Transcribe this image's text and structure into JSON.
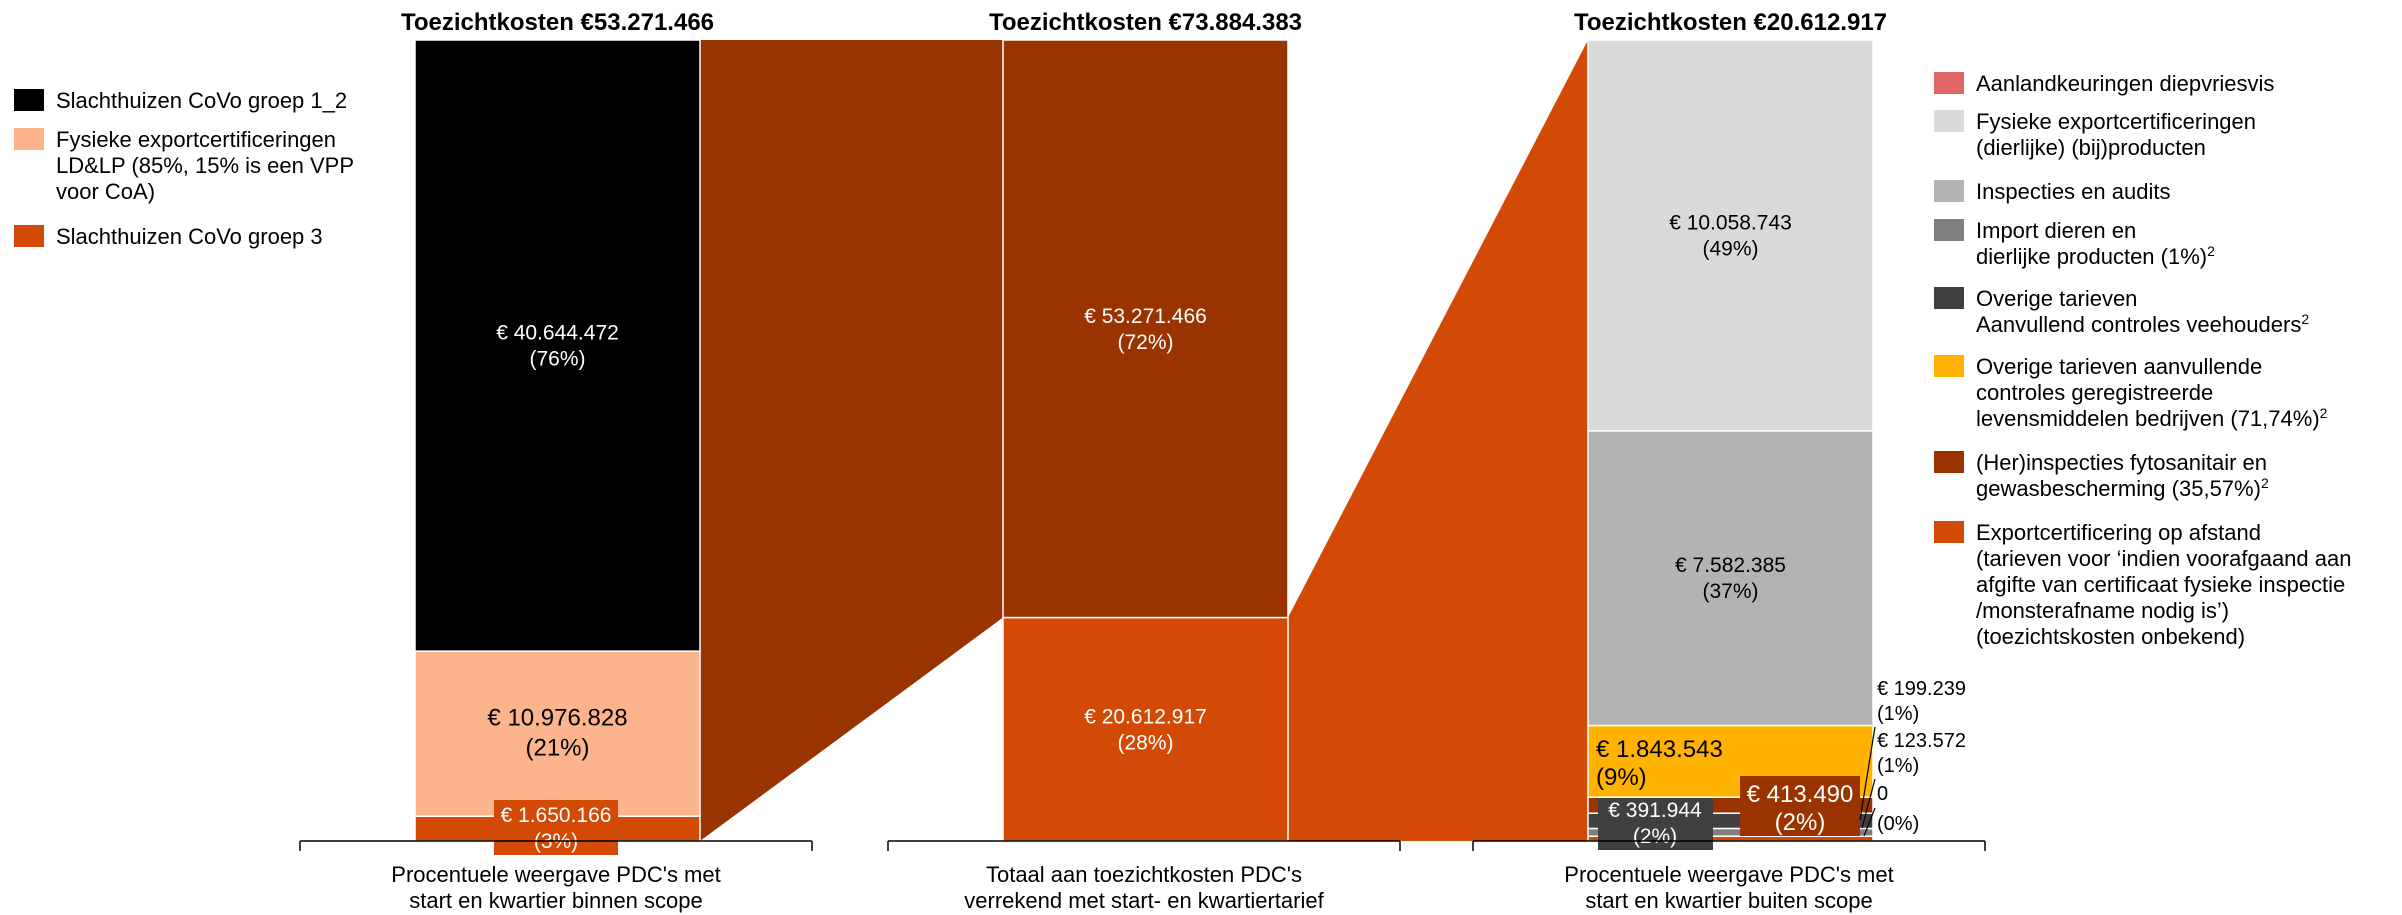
{
  "chart_data": {
    "type": "bar",
    "stacked": true,
    "bars": [
      {
        "id": "binnen",
        "title": "Toezichtkosten €53.271.466",
        "total": 53271466,
        "axis_label": [
          "Procentuele weergave PDC's met",
          "start en kwartier binnen scope"
        ],
        "segments": [
          {
            "name": "Slachthuizen CoVo groep 3",
            "value": 1650166,
            "pct": 3,
            "label": "€ 1.650.166",
            "pct_label": "(3%)",
            "color": "#d24a05"
          },
          {
            "name": "Fysieke exportcertificeringen LD&LP (85%, 15% is een VPP voor CoA)",
            "value": 10976828,
            "pct": 21,
            "label": "€ 10.976.828",
            "pct_label": "(21%)",
            "color": "#fcb48c"
          },
          {
            "name": "Slachthuizen CoVo groep 1_2",
            "value": 40644472,
            "pct": 76,
            "label": "€ 40.644.472",
            "pct_label": "(76%)",
            "color": "#000000"
          }
        ]
      },
      {
        "id": "totaal",
        "title": "Toezichtkosten €73.884.383",
        "total": 73884383,
        "axis_label": [
          "Totaal aan toezichtkosten PDC's",
          "verrekend met start- en kwartiertarief"
        ],
        "segments": [
          {
            "name": "Buiten scope",
            "value": 20612917,
            "pct": 28,
            "label": "€ 20.612.917",
            "pct_label": "(28%)",
            "color": "#d24a05"
          },
          {
            "name": "Binnen scope",
            "value": 53271466,
            "pct": 72,
            "label": "€ 53.271.466",
            "pct_label": "(72%)",
            "color": "#993300"
          }
        ]
      },
      {
        "id": "buiten",
        "title": "Toezichtkosten €20.612.917",
        "total": 20612917,
        "axis_label": [
          "Procentuele weergave PDC's met",
          "start en kwartier buiten scope"
        ],
        "segments": [
          {
            "name": "Aanlandkeuringen diepvriesvis",
            "value": 0,
            "pct": 0,
            "label": "0",
            "pct_label": "(0%)",
            "color": "#e06666"
          },
          {
            "name": "Exportcertificering op afstand",
            "value": 123572,
            "pct": 1,
            "label": "€ 123.572",
            "pct_label": "(1%)",
            "color": "#d24a05"
          },
          {
            "name": "Import dieren en dierlijke producten (1%)",
            "value": 199239,
            "pct": 1,
            "label": "€ 199.239",
            "pct_label": "(1%)",
            "color": "#7f7f7f"
          },
          {
            "name": "Overige tarieven Aanvullend controles veehouders",
            "value": 391944,
            "pct": 2,
            "label": "€ 391.944",
            "pct_label": "(2%)",
            "color": "#404040"
          },
          {
            "name": "(Her)inspecties fytosanitair en gewasbescherming (35,57%)",
            "value": 413490,
            "pct": 2,
            "label": "€ 413.490",
            "pct_label": "(2%)",
            "color": "#993300"
          },
          {
            "name": "Overige tarieven aanvullende controles geregistreerde levensmiddelen bedrijven (71,74%)",
            "value": 1843543,
            "pct": 9,
            "label": "€ 1.843.543",
            "pct_label": "(9%)",
            "color": "#ffb300"
          },
          {
            "name": "Inspecties en audits",
            "value": 7582385,
            "pct": 37,
            "label": "€ 7.582.385",
            "pct_label": "(37%)",
            "color": "#b3b3b3"
          },
          {
            "name": "Fysieke exportcertificeringen (dierlijke) (bij)producten",
            "value": 10058743,
            "pct": 49,
            "label": "€ 10.058.743",
            "pct_label": "(49%)",
            "color": "#dadada"
          }
        ],
        "callouts": [
          {
            "label": "€ 199.239",
            "pct_label": "(1%)"
          },
          {
            "label": "€ 123.572",
            "pct_label": "(1%)"
          },
          {
            "label": "0",
            "pct_label": "(0%)"
          }
        ]
      }
    ],
    "connector_colors": {
      "binnen": "#993300",
      "buiten": "#d24a05"
    },
    "legend_left": [
      {
        "lines": [
          "Slachthuizen CoVo groep 1_2"
        ],
        "color": "#000000"
      },
      {
        "lines": [
          "Fysieke exportcertificeringen",
          "LD&LP (85%, 15% is een VPP",
          "voor CoA)"
        ],
        "color": "#fcb48c"
      },
      {
        "lines": [
          "Slachthuizen CoVo groep 3"
        ],
        "color": "#d24a05"
      }
    ],
    "legend_right": [
      {
        "lines": [
          "Aanlandkeuringen diepvriesvis"
        ],
        "color": "#e06666"
      },
      {
        "lines": [
          "Fysieke exportcertificeringen",
          " (dierlijke) (bij)producten"
        ],
        "color": "#dadada"
      },
      {
        "lines": [
          "Inspecties en audits"
        ],
        "color": "#b3b3b3"
      },
      {
        "lines": [
          "Import dieren en",
          "dierlijke producten (1%)"
        ],
        "color": "#7f7f7f",
        "footnote_line": 1,
        "footnote": "2"
      },
      {
        "lines": [
          "Overige tarieven",
          "Aanvullend controles veehouders"
        ],
        "color": "#404040",
        "footnote_line": 1,
        "footnote": "2"
      },
      {
        "lines": [
          "Overige tarieven aanvullende",
          "controles geregistreerde",
          "levensmiddelen bedrijven (71,74%)"
        ],
        "color": "#ffb300",
        "footnote_line": 2,
        "footnote": "2"
      },
      {
        "lines": [
          "(Her)inspecties fytosanitair en",
          "gewasbescherming (35,57%)"
        ],
        "color": "#993300",
        "footnote_line": 1,
        "footnote": "2"
      },
      {
        "lines": [
          "Exportcertificering op afstand",
          "(tarieven voor ‘indien voorafgaand aan",
          "afgifte van certificaat fysieke inspectie",
          "/monsterafname nodig is’)",
          "(toezichtskosten onbekend)"
        ],
        "color": "#d24a05"
      }
    ]
  }
}
